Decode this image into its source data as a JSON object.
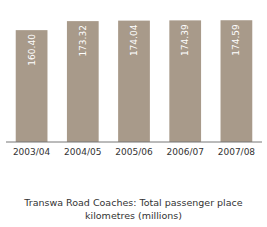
{
  "chart_data": {
    "type": "bar",
    "title": "Transwa Road Coaches: Total passenger place\nkilometres (millions)",
    "categories": [
      "2003/04",
      "2004/05",
      "2005/06",
      "2006/07",
      "2007/08"
    ],
    "values": [
      160.4,
      173.32,
      174.04,
      174.39,
      174.59
    ],
    "value_labels": [
      "160.40",
      "173.32",
      "174.04",
      "174.39",
      "174.59"
    ],
    "color": "#a89a8a",
    "ylim": [
      0,
      195
    ],
    "data_labels": true,
    "tick_labels": "x",
    "grid": false
  }
}
